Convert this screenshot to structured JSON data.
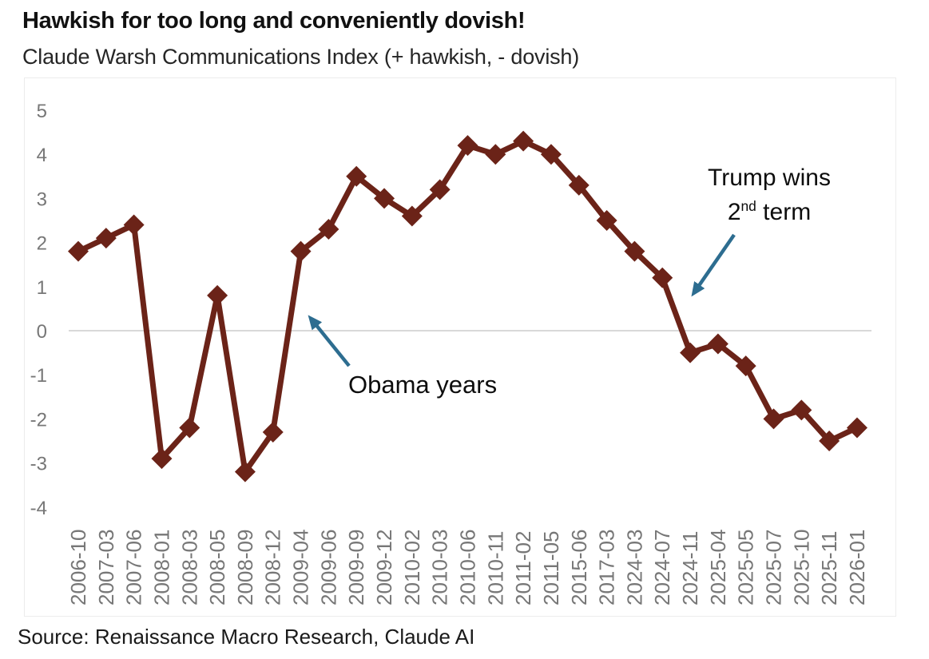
{
  "header": {
    "title": "Hawkish for too long and conveniently dovish!",
    "subtitle": "Claude Warsh Communications Index (+ hawkish, - dovish)"
  },
  "footer": {
    "source": "Source: Renaissance Macro Research, Claude AI"
  },
  "colors": {
    "line": "#6b2318",
    "marker": "#6b2318",
    "arrow": "#2d6d90",
    "gridline": "#d9d9d9",
    "axis_label": "#777777",
    "panel_border": "#ececec",
    "title_text": "#111111",
    "annotation_text": "#0d0d0d"
  },
  "annotations": {
    "obama": {
      "label": "Obama years"
    },
    "trump": {
      "line1": "Trump wins",
      "line2_num": "2",
      "line2_sup": "nd",
      "line2_rest": " term"
    }
  },
  "chart_data": {
    "type": "line",
    "title": "Hawkish for too long and conveniently dovish!",
    "subtitle": "Claude Warsh Communications Index (+ hawkish, - dovish)",
    "xlabel": "",
    "ylabel": "",
    "ylim": [
      -4,
      5
    ],
    "yticks": [
      5,
      4,
      3,
      2,
      1,
      0,
      -1,
      -2,
      -3,
      -4
    ],
    "grid": "zero-line-only",
    "legend": "none",
    "marker": "diamond",
    "categories": [
      "2006-10",
      "2007-03",
      "2007-06",
      "2008-01",
      "2008-03",
      "2008-05",
      "2008-09",
      "2008-12",
      "2009-04",
      "2009-06",
      "2009-09",
      "2009-12",
      "2010-02",
      "2010-03",
      "2010-06",
      "2010-11",
      "2011-02",
      "2011-05",
      "2015-06",
      "2017-03",
      "2024-03",
      "2024-07",
      "2024-11",
      "2025-04",
      "2025-05",
      "2025-07",
      "2025-10",
      "2025-11",
      "2026-01"
    ],
    "values": [
      1.8,
      2.1,
      2.4,
      -2.9,
      -2.2,
      0.8,
      -3.2,
      -2.3,
      1.8,
      2.3,
      3.5,
      3.0,
      2.6,
      3.2,
      4.2,
      4.0,
      4.3,
      4.0,
      3.3,
      2.5,
      1.8,
      1.2,
      -0.5,
      -0.3,
      -0.8,
      -2.0,
      -1.8,
      -2.5,
      -2.2
    ],
    "annotations": [
      {
        "text": "Obama years",
        "points_to_category": "2009-04"
      },
      {
        "text": "Trump wins 2nd term",
        "points_to_category": "2024-11"
      }
    ]
  }
}
